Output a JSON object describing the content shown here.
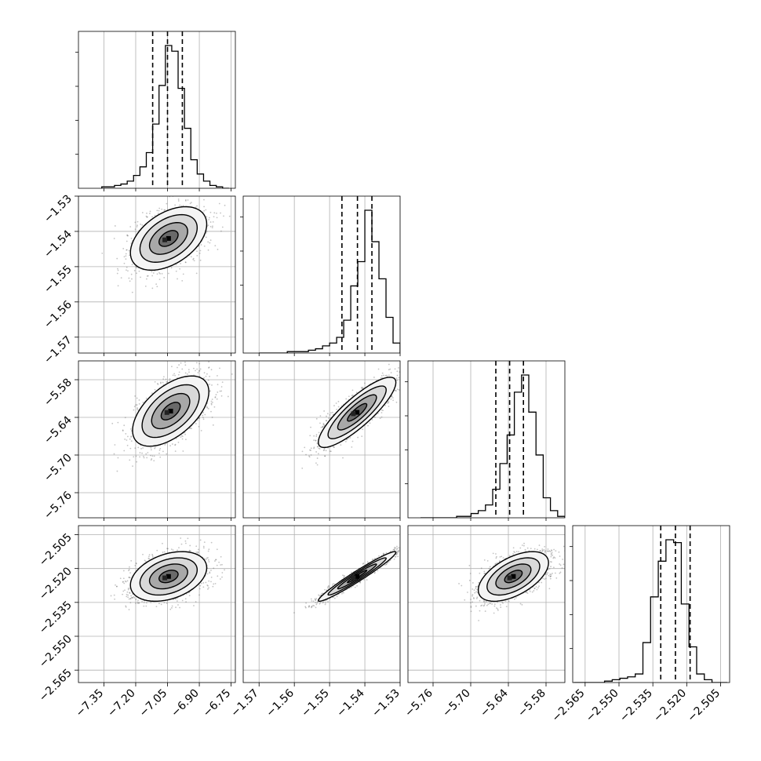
{
  "chart_data": {
    "type": "corner",
    "title": "",
    "grid": true,
    "parameters": [
      {
        "ticks": [
          -7.35,
          -7.2,
          -7.05,
          -6.9,
          -6.75
        ],
        "tick_labels": [
          "−7.35",
          "−7.20",
          "−7.05",
          "−6.90",
          "−6.75"
        ],
        "quantiles": [
          -7.12,
          -7.05,
          -6.98
        ]
      },
      {
        "ticks": [
          -1.57,
          -1.56,
          -1.55,
          -1.54,
          -1.53
        ],
        "tick_labels": [
          "−1.57",
          "−1.56",
          "−1.55",
          "−1.54",
          "−1.53"
        ],
        "quantiles": [
          -1.5465,
          -1.5421,
          -1.538
        ]
      },
      {
        "ticks": [
          -5.76,
          -5.7,
          -5.64,
          -5.58
        ],
        "tick_labels": [
          "−5.76",
          "−5.70",
          "−5.64",
          "−5.58"
        ],
        "quantiles": [
          -5.66,
          -5.638,
          -5.616
        ]
      },
      {
        "ticks": [
          -2.565,
          -2.55,
          -2.535,
          -2.52,
          -2.505
        ],
        "tick_labels": [
          "−2.565",
          "−2.550",
          "−2.535",
          "−2.520",
          "−2.505"
        ],
        "quantiles": [
          -2.5315,
          -2.525,
          -2.5185
        ]
      }
    ],
    "histograms": [
      {
        "param": 0,
        "bins_from": -7.36,
        "bins_to": -6.76,
        "counts": [
          1,
          1,
          2,
          3,
          5,
          9,
          15,
          25,
          45,
          72,
          100,
          96,
          70,
          42,
          20,
          10,
          5,
          2,
          1,
          0
        ]
      },
      {
        "param": 1,
        "bins_from": -1.57,
        "bins_to": -1.53,
        "counts": [
          0,
          0,
          0,
          0,
          1,
          1,
          1,
          2,
          3,
          5,
          7,
          11,
          23,
          47,
          64,
          100,
          78,
          52,
          25,
          7
        ]
      },
      {
        "param": 2,
        "bins_from": -5.78,
        "bins_to": -5.55,
        "counts": [
          0,
          0,
          0,
          0,
          0,
          1,
          1,
          3,
          5,
          9,
          20,
          38,
          58,
          88,
          100,
          74,
          44,
          14,
          5,
          1
        ]
      },
      {
        "param": 3,
        "bins_from": -2.57,
        "bins_to": -2.502,
        "counts": [
          0,
          0,
          0,
          0,
          1,
          2,
          3,
          4,
          6,
          28,
          60,
          85,
          100,
          98,
          55,
          25,
          6,
          2,
          0,
          0
        ]
      }
    ],
    "pairs": [
      {
        "x": 0,
        "y": 1,
        "center": [
          -7.045,
          -1.542
        ],
        "sigma": [
          0.09,
          0.0045
        ],
        "rho": 0.45
      },
      {
        "x": 0,
        "y": 2,
        "center": [
          -7.035,
          -5.63
        ],
        "sigma": [
          0.09,
          0.028
        ],
        "rho": 0.55
      },
      {
        "x": 1,
        "y": 2,
        "center": [
          -1.5422,
          -5.632
        ],
        "sigma": [
          0.0055,
          0.028
        ],
        "rho": 0.85
      },
      {
        "x": 0,
        "y": 3,
        "center": [
          -7.045,
          -2.5235
        ],
        "sigma": [
          0.09,
          0.0055
        ],
        "rho": 0.35
      },
      {
        "x": 1,
        "y": 3,
        "center": [
          -1.5422,
          -2.5235
        ],
        "sigma": [
          0.0055,
          0.0055
        ],
        "rho": 0.97
      },
      {
        "x": 2,
        "y": 3,
        "center": [
          -5.632,
          -2.5235
        ],
        "sigma": [
          0.028,
          0.0055
        ],
        "rho": 0.55
      }
    ],
    "contour_levels_sigma": [
      0.5,
      1.0,
      1.5,
      2.0
    ]
  }
}
